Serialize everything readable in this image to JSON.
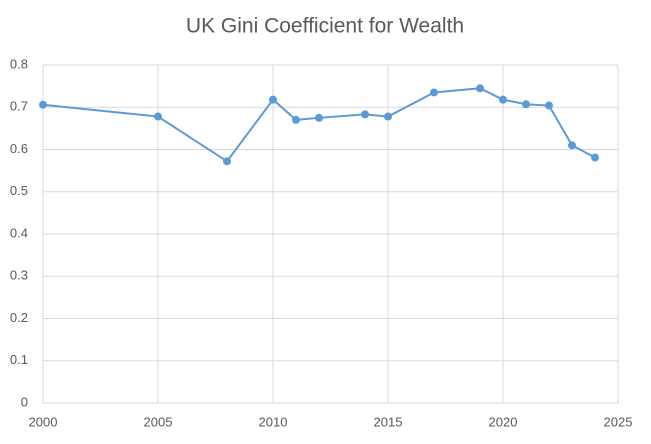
{
  "chart_data": {
    "type": "line",
    "title": "UK Gini Coefficient for Wealth",
    "x": [
      2000,
      2005,
      2008,
      2010,
      2011,
      2012,
      2014,
      2015,
      2017,
      2019,
      2020,
      2021,
      2022,
      2023,
      2024
    ],
    "series": [
      {
        "name": "Gini",
        "color": "#5b9bd5",
        "values": [
          0.706,
          0.678,
          0.572,
          0.718,
          0.67,
          0.675,
          0.683,
          0.678,
          0.735,
          0.745,
          0.718,
          0.707,
          0.704,
          0.61,
          0.581
        ]
      }
    ],
    "xlim": [
      2000,
      2025
    ],
    "xticks": [
      2000,
      2005,
      2010,
      2015,
      2020,
      2025
    ],
    "ylim": [
      0,
      0.8
    ],
    "yticks": [
      0,
      0.1,
      0.2,
      0.3,
      0.4,
      0.5,
      0.6,
      0.7,
      0.8
    ],
    "grid": true,
    "markers": true
  }
}
